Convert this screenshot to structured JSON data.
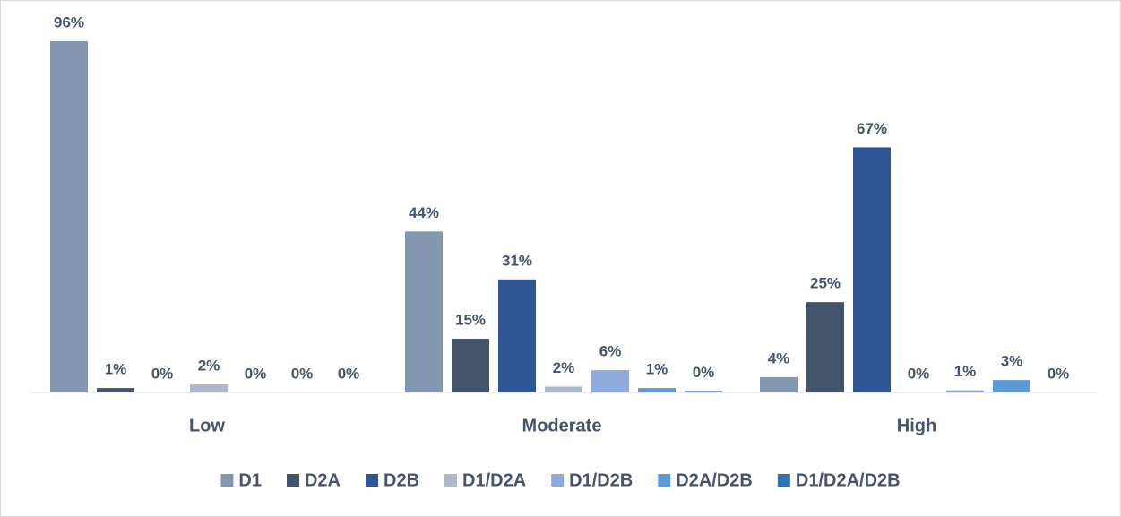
{
  "chart_data": {
    "type": "bar",
    "categories": [
      "Low",
      "Moderate",
      "High"
    ],
    "series": [
      {
        "name": "D1",
        "color": "#8497b0",
        "values": [
          96,
          44,
          4.2
        ],
        "value_labels": [
          "96%",
          "44%",
          "4%"
        ]
      },
      {
        "name": "D2A",
        "color": "#44546a",
        "values": [
          1.2,
          14.7,
          24.7
        ],
        "value_labels": [
          "1%",
          "15%",
          "25%"
        ]
      },
      {
        "name": "D2B",
        "color": "#2f5597",
        "values": [
          0,
          30.9,
          67
        ],
        "value_labels": [
          "0%",
          "31%",
          "67%"
        ]
      },
      {
        "name": "D1/D2A",
        "color": "#adb9ca",
        "values": [
          2.2,
          1.6,
          0
        ],
        "value_labels": [
          "2%",
          "2%",
          "0%"
        ]
      },
      {
        "name": "D1/D2B",
        "color": "#8faadc",
        "values": [
          0,
          6.1,
          0.6
        ],
        "value_labels": [
          "0%",
          "6%",
          "1%"
        ]
      },
      {
        "name": "D2A/D2B",
        "color": "#5b9bd5",
        "values": [
          0,
          1.2,
          3.4
        ],
        "value_labels": [
          "0%",
          "1%",
          "3%"
        ]
      },
      {
        "name": "D1/D2A/D2B",
        "color": "#2e75b6",
        "values": [
          0,
          0.4,
          0
        ],
        "value_labels": [
          "0%",
          "0%",
          "0%"
        ]
      }
    ],
    "legend": "bottom"
  }
}
